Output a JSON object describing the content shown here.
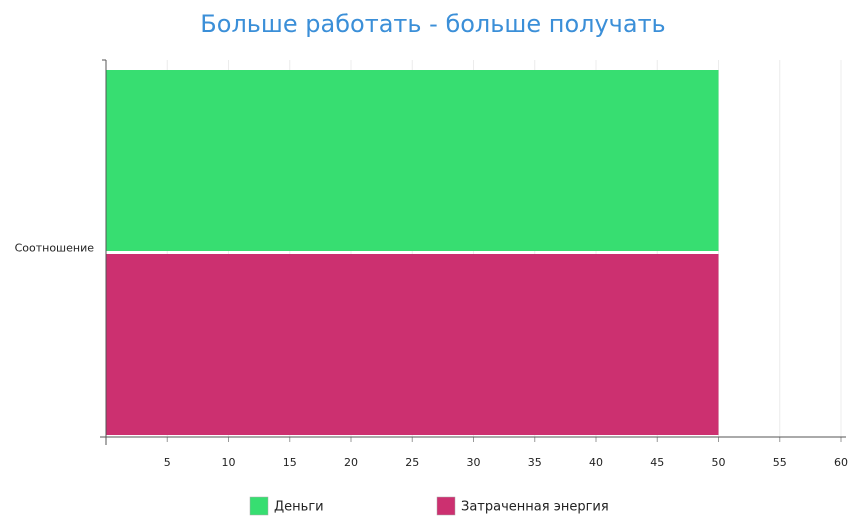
{
  "chart_data": {
    "type": "bar",
    "orientation": "horizontal",
    "title": "Больше работать - больше получать",
    "categories": [
      "Соотношение"
    ],
    "series": [
      {
        "name": "Деньги",
        "color": "#37de71",
        "values": [
          50
        ]
      },
      {
        "name": "Затраченная энергия",
        "color": "#cc3070",
        "values": [
          50
        ]
      }
    ],
    "xlim": [
      0,
      60
    ],
    "xticks": [
      5,
      10,
      15,
      20,
      25,
      30,
      35,
      40,
      45,
      50,
      55,
      60
    ],
    "grid": true
  }
}
